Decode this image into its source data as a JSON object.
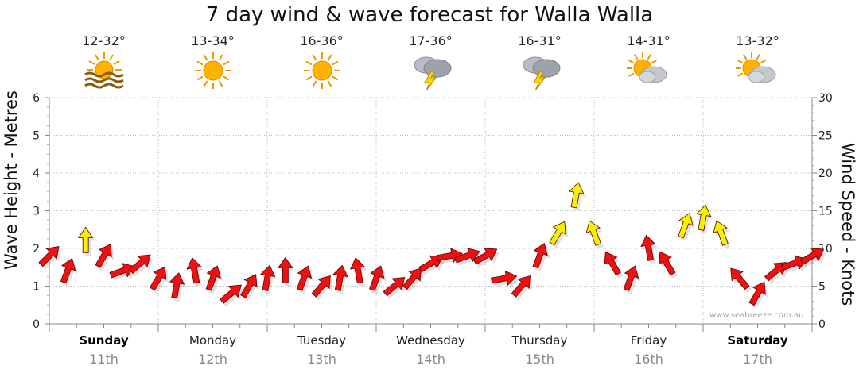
{
  "title": "7 day wind & wave forecast for Walla Walla",
  "y_left_label": "Wave Height - Metres",
  "y_right_label": "Wind Speed - Knots",
  "watermark": "www.seabreeze.com.au",
  "forecast": [
    {
      "temp": "12-32°",
      "icon": "sun-haze-icon"
    },
    {
      "temp": "13-34°",
      "icon": "sun-icon"
    },
    {
      "temp": "16-36°",
      "icon": "sun-icon"
    },
    {
      "temp": "17-36°",
      "icon": "storm-icon"
    },
    {
      "temp": "16-31°",
      "icon": "storm-icon"
    },
    {
      "temp": "14-31°",
      "icon": "partly-cloudy-icon"
    },
    {
      "temp": "13-32°",
      "icon": "partly-cloudy-icon"
    }
  ],
  "days": [
    {
      "name": "Sunday",
      "date": "11th",
      "bold": true
    },
    {
      "name": "Monday",
      "date": "12th",
      "bold": false
    },
    {
      "name": "Tuesday",
      "date": "13th",
      "bold": false
    },
    {
      "name": "Wednesday",
      "date": "14th",
      "bold": false
    },
    {
      "name": "Thursday",
      "date": "15th",
      "bold": false
    },
    {
      "name": "Friday",
      "date": "16th",
      "bold": false
    },
    {
      "name": "Saturday",
      "date": "17th",
      "bold": true
    }
  ],
  "colors": {
    "calm": "#ee1111",
    "strong": "#f4f000",
    "outline": "#5a0000",
    "grid": "#bbbbbb"
  },
  "chart_data": {
    "type": "scatter",
    "title": "7 day wind & wave forecast for Walla Walla",
    "x_unit": "hours from Sunday 00:00",
    "left_axis": {
      "label": "Wave Height - Metres",
      "range": [
        0,
        6
      ],
      "ticks": [
        0,
        1,
        2,
        3,
        4,
        5,
        6
      ]
    },
    "right_axis": {
      "label": "Wind Speed - Knots",
      "range": [
        0,
        30
      ],
      "ticks": [
        0,
        5,
        10,
        15,
        20,
        25,
        30
      ]
    },
    "strong_threshold_knots": 11,
    "wind": {
      "hours": [
        0,
        4,
        8,
        12,
        16,
        20,
        24,
        28,
        32,
        36,
        40,
        44,
        48,
        52,
        56,
        60,
        64,
        68,
        72,
        76,
        80,
        84,
        88,
        92,
        96,
        100,
        104,
        108,
        112,
        116,
        120,
        124,
        128,
        132,
        136,
        140,
        144,
        148,
        152,
        156,
        160,
        164,
        168
      ],
      "speed_knots": [
        9,
        7,
        11,
        9,
        7,
        8,
        6,
        5,
        7,
        6,
        4,
        5,
        6,
        7,
        6,
        5,
        6,
        7,
        6,
        5,
        6,
        8,
        9,
        9,
        9,
        6,
        5,
        9,
        12,
        17,
        12,
        8,
        6,
        10,
        8,
        13,
        14,
        12,
        6,
        4,
        7,
        8,
        9
      ],
      "direction_deg": [
        225,
        200,
        180,
        210,
        250,
        230,
        210,
        190,
        170,
        200,
        230,
        210,
        190,
        180,
        200,
        220,
        190,
        170,
        200,
        230,
        220,
        240,
        260,
        250,
        240,
        260,
        220,
        200,
        210,
        190,
        160,
        150,
        200,
        170,
        150,
        200,
        190,
        160,
        140,
        210,
        230,
        250,
        240
      ]
    }
  }
}
